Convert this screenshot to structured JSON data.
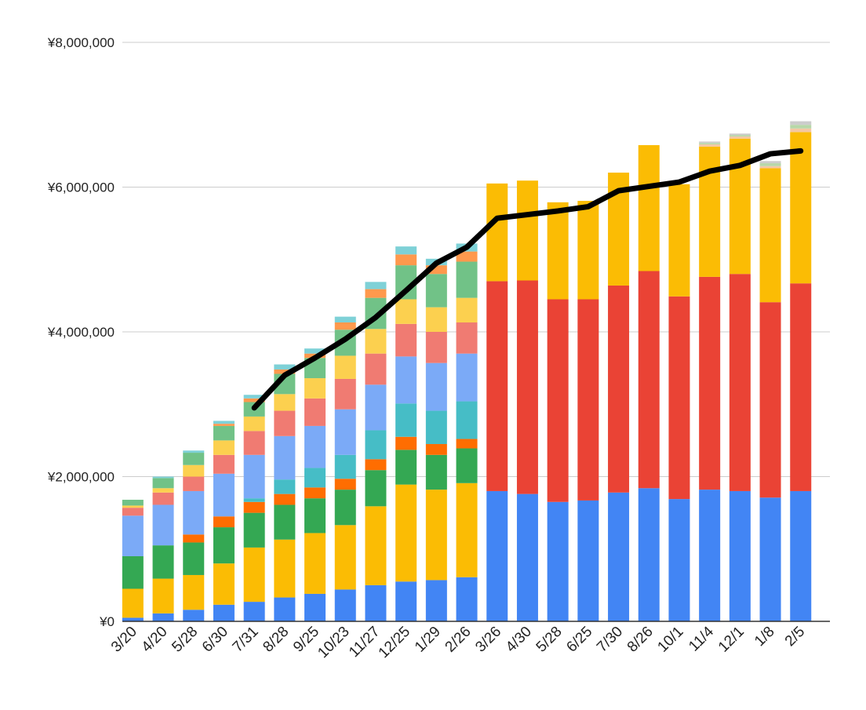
{
  "chart_data": {
    "type": "bar",
    "stacked": true,
    "title": "",
    "xlabel": "",
    "ylabel": "",
    "ylim": [
      0,
      8000000
    ],
    "yticks": [
      0,
      2000000,
      4000000,
      6000000,
      8000000
    ],
    "ytick_labels": [
      "¥0",
      "¥2,000,000",
      "¥4,000,000",
      "¥6,000,000",
      "¥8,000,000"
    ],
    "grid": true,
    "legend": "none",
    "categories": [
      "3/20",
      "4/20",
      "5/28",
      "6/30",
      "7/31",
      "8/28",
      "9/25",
      "10/23",
      "11/27",
      "12/25",
      "1/29",
      "2/26",
      "3/26",
      "4/30",
      "5/28",
      "6/25",
      "7/30",
      "8/26",
      "10/1",
      "11/4",
      "12/1",
      "1/8",
      "2/5"
    ],
    "series": [
      {
        "color": "#4285f4",
        "values": [
          50000,
          110000,
          160000,
          230000,
          270000,
          330000,
          380000,
          440000,
          500000,
          550000,
          570000,
          610000,
          1800000,
          1760000,
          1650000,
          1670000,
          1780000,
          1840000,
          1690000,
          1820000,
          1800000,
          1710000,
          1800000
        ]
      },
      {
        "color": "#fbbc04",
        "values": [
          400000,
          480000,
          480000,
          570000,
          750000,
          800000,
          840000,
          890000,
          1090000,
          1340000,
          1250000,
          1300000,
          0,
          0,
          0,
          0,
          0,
          0,
          0,
          0,
          0,
          0,
          0
        ]
      },
      {
        "color": "#34a853",
        "values": [
          450000,
          460000,
          450000,
          500000,
          480000,
          480000,
          480000,
          490000,
          500000,
          480000,
          480000,
          480000,
          0,
          0,
          0,
          0,
          0,
          0,
          0,
          0,
          0,
          0,
          0
        ]
      },
      {
        "color": "#ff6d01",
        "values": [
          0,
          0,
          110000,
          150000,
          150000,
          150000,
          150000,
          150000,
          150000,
          180000,
          150000,
          130000,
          0,
          0,
          0,
          0,
          0,
          0,
          0,
          0,
          0,
          0,
          0
        ]
      },
      {
        "color": "#46bdc6",
        "values": [
          0,
          0,
          0,
          0,
          50000,
          200000,
          270000,
          330000,
          400000,
          460000,
          460000,
          520000,
          0,
          0,
          0,
          0,
          0,
          0,
          0,
          0,
          0,
          0,
          0
        ]
      },
      {
        "color": "#7baaf7",
        "values": [
          560000,
          560000,
          600000,
          590000,
          600000,
          600000,
          580000,
          630000,
          630000,
          650000,
          660000,
          660000,
          0,
          0,
          0,
          0,
          0,
          0,
          0,
          0,
          0,
          0,
          0
        ]
      },
      {
        "color": "#f07b72",
        "values": [
          110000,
          170000,
          200000,
          260000,
          330000,
          350000,
          380000,
          420000,
          430000,
          450000,
          430000,
          430000,
          0,
          0,
          0,
          0,
          0,
          0,
          0,
          0,
          0,
          0,
          0
        ]
      },
      {
        "color": "#fcd04f",
        "values": [
          30000,
          60000,
          160000,
          200000,
          200000,
          230000,
          280000,
          320000,
          340000,
          340000,
          340000,
          340000,
          0,
          0,
          0,
          0,
          0,
          0,
          0,
          0,
          0,
          0,
          0
        ]
      },
      {
        "color": "#71c287",
        "values": [
          80000,
          140000,
          170000,
          200000,
          200000,
          280000,
          280000,
          360000,
          430000,
          470000,
          460000,
          500000,
          0,
          0,
          0,
          0,
          0,
          0,
          0,
          0,
          0,
          0,
          0
        ]
      },
      {
        "color": "#ff994d",
        "values": [
          0,
          0,
          0,
          30000,
          50000,
          60000,
          60000,
          100000,
          120000,
          150000,
          120000,
          140000,
          0,
          0,
          0,
          0,
          0,
          0,
          0,
          0,
          0,
          0,
          0
        ]
      },
      {
        "color": "#7ed1d7",
        "values": [
          0,
          20000,
          30000,
          40000,
          50000,
          70000,
          70000,
          80000,
          100000,
          110000,
          90000,
          110000,
          0,
          0,
          0,
          0,
          0,
          0,
          0,
          0,
          0,
          0,
          0
        ]
      },
      {
        "color": "#ea4335",
        "values": [
          0,
          0,
          0,
          0,
          0,
          0,
          0,
          0,
          0,
          0,
          0,
          0,
          2900000,
          2950000,
          2800000,
          2780000,
          2860000,
          3000000,
          2800000,
          2940000,
          3000000,
          2700000,
          2870000
        ]
      },
      {
        "color": "#fbbc04",
        "values": [
          0,
          0,
          0,
          0,
          0,
          0,
          0,
          0,
          0,
          0,
          0,
          0,
          1350000,
          1380000,
          1340000,
          1360000,
          1560000,
          1740000,
          1550000,
          1800000,
          1870000,
          1850000,
          2090000
        ]
      },
      {
        "color": "#f4c7a3",
        "values": [
          0,
          0,
          0,
          0,
          0,
          0,
          0,
          0,
          0,
          0,
          0,
          0,
          0,
          0,
          0,
          0,
          0,
          0,
          0,
          30000,
          30000,
          30000,
          50000
        ]
      },
      {
        "color": "#b7d7a8",
        "values": [
          0,
          0,
          0,
          0,
          0,
          0,
          0,
          0,
          0,
          0,
          0,
          0,
          0,
          0,
          0,
          0,
          0,
          0,
          0,
          20000,
          20000,
          40000,
          50000
        ]
      },
      {
        "color": "#cccccc",
        "values": [
          0,
          0,
          0,
          0,
          0,
          0,
          0,
          0,
          0,
          0,
          0,
          0,
          0,
          0,
          0,
          0,
          0,
          0,
          0,
          20000,
          20000,
          30000,
          50000
        ]
      }
    ],
    "line": {
      "color": "#000000",
      "values": [
        null,
        null,
        null,
        null,
        2950000,
        3400000,
        3640000,
        3900000,
        4200000,
        4570000,
        4950000,
        5170000,
        5570000,
        5620000,
        5670000,
        5730000,
        5950000,
        6010000,
        6070000,
        6220000,
        6300000,
        6460000,
        6500000
      ]
    }
  }
}
